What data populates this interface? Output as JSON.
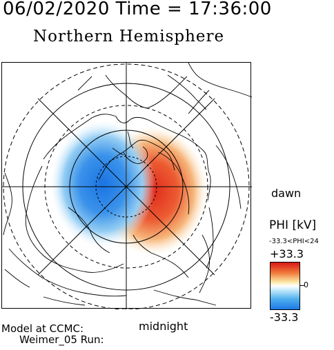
{
  "header": {
    "timestamp": "06/02/2020 Time = 17:36:00",
    "subtitle": "Northern Hemisphere"
  },
  "map": {
    "projection": "polar",
    "hemisphere": "north",
    "dawn_label": "dawn",
    "midnight_label": "midnight",
    "potential_pattern": "two-cell convection",
    "dawn_cell_color": "#e8402a",
    "dusk_cell_color": "#2a8ae6"
  },
  "legend": {
    "title": "PHI [kV]",
    "range_text": "-33.3<PHI<24",
    "max_label": "+33.3",
    "zero_label": "0",
    "min_label": "-33.3",
    "max_value": 33.3,
    "min_value": -33.3
  },
  "footer": {
    "line1": "Model at CCMC:",
    "line2": "Weimer_05 Run:"
  }
}
